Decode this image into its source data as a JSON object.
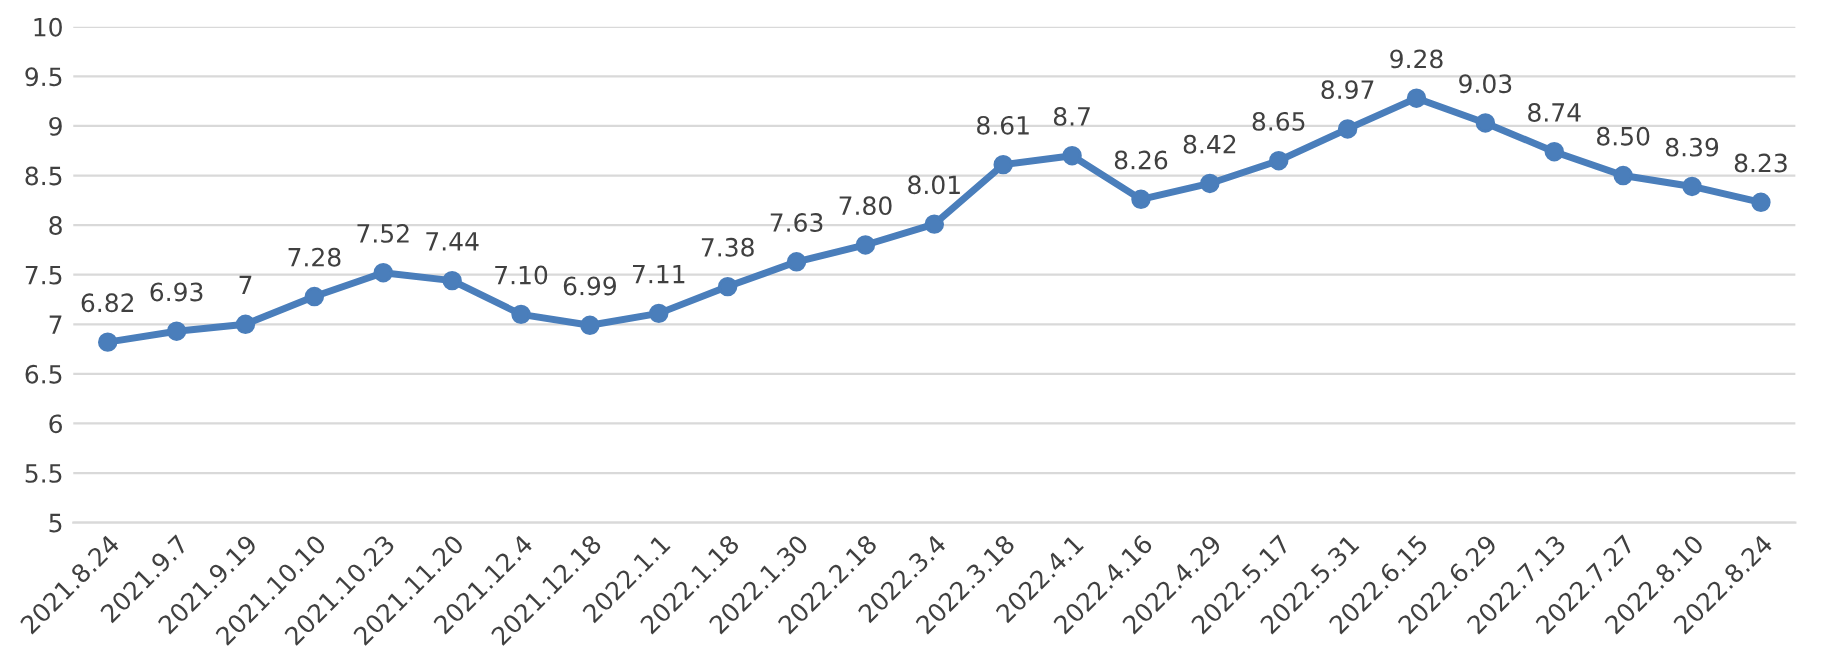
{
  "chart_data": {
    "type": "line",
    "categories": [
      "2021.8.24",
      "2021.9.7",
      "2021.9.19",
      "2021.10.10",
      "2021.10.23",
      "2021.11.20",
      "2021.12.4",
      "2021.12.18",
      "2022.1.1",
      "2022.1.18",
      "2022.1.30",
      "2022.2.18",
      "2022.3.4",
      "2022.3.18",
      "2022.4.1",
      "2022.4.16",
      "2022.4.29",
      "2022.5.17",
      "2022.5.31",
      "2022.6.15",
      "2022.6.29",
      "2022.7.13",
      "2022.7.27",
      "2022.8.10",
      "2022.8.24"
    ],
    "series": [
      {
        "color": "#4a7ebb",
        "values": [
          6.82,
          6.93,
          7,
          7.28,
          7.52,
          7.44,
          7.1,
          6.99,
          7.11,
          7.38,
          7.63,
          7.8,
          8.01,
          8.61,
          8.7,
          8.26,
          8.42,
          8.65,
          8.97,
          9.28,
          9.03,
          8.74,
          8.5,
          8.39,
          8.23
        ],
        "value_labels": [
          "6.82",
          "6.93",
          "7",
          "7.28",
          "7.52",
          "7.44",
          "7.10",
          "6.99",
          "7.11",
          "7.38",
          "7.63",
          "7.80",
          "8.01",
          "8.61",
          "8.7",
          "8.26",
          "8.42",
          "8.65",
          "8.97",
          "9.28",
          "9.03",
          "8.74",
          "8.50",
          "8.39",
          "8.23"
        ]
      }
    ],
    "ylim": [
      5,
      10
    ],
    "yticks": [
      5,
      5.5,
      6,
      6.5,
      7,
      7.5,
      8,
      8.5,
      9,
      9.5,
      10
    ],
    "grid": "y",
    "marker": "circle",
    "line_style": "solid",
    "legend": false
  }
}
